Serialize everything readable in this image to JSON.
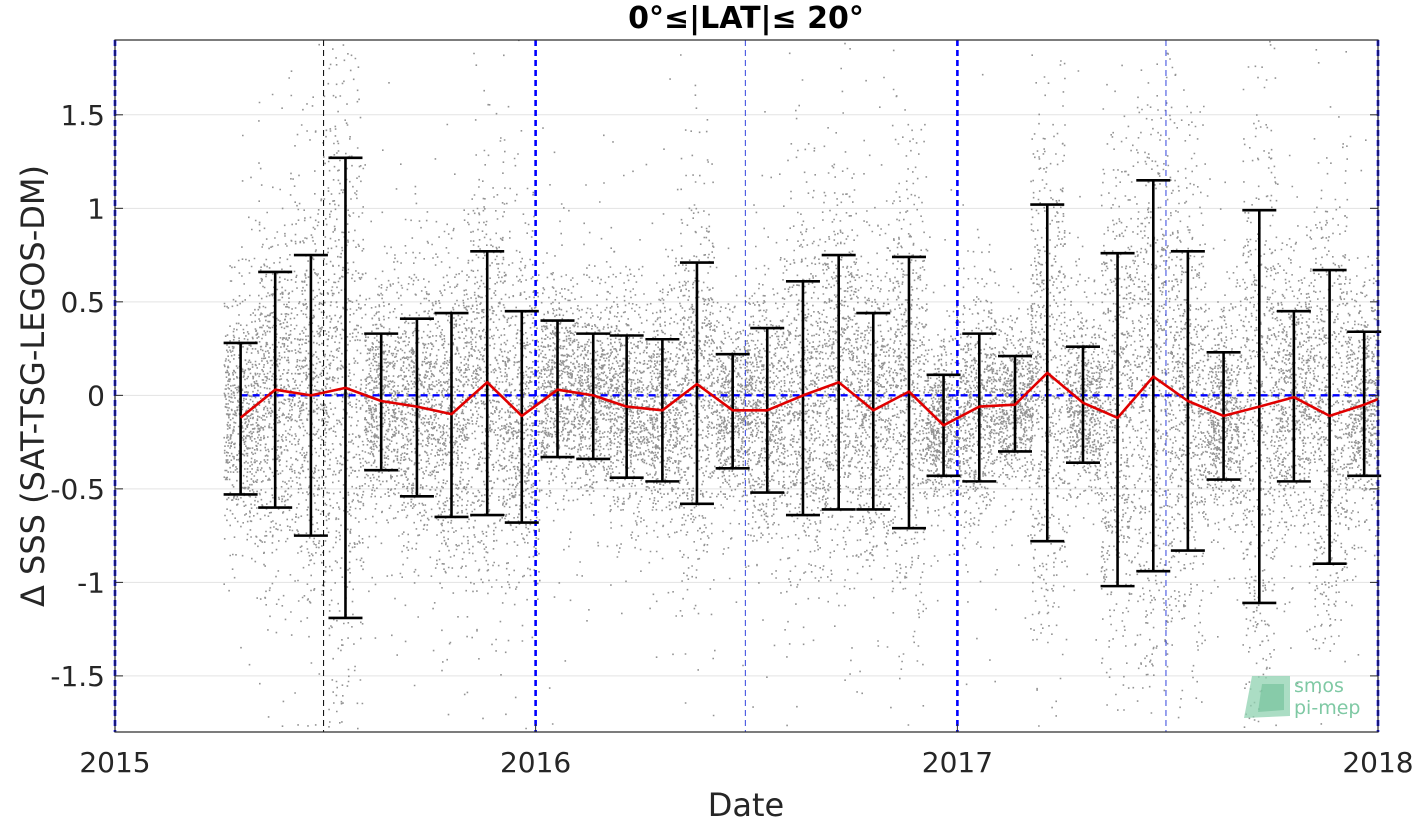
{
  "chart_data": {
    "type": "scatter",
    "title": "0°≤|LAT|≤ 20°",
    "xlabel": "Date",
    "ylabel": "Δ SSS (SAT-TSG-LEGOS-DM)",
    "xlim": [
      "2015-01-01",
      "2018-01-01"
    ],
    "ylim": [
      -1.8,
      1.9
    ],
    "x_ticks": [
      "2015",
      "2016",
      "2017",
      "2018"
    ],
    "y_ticks": [
      -1.5,
      -1,
      -0.5,
      0,
      0.5,
      1,
      1.5
    ],
    "y_tick_labels": [
      "-1.5",
      "-1",
      "-0.5",
      "0",
      "0.5",
      "1",
      "1.5"
    ],
    "grid": true,
    "zero_line": {
      "value": 0,
      "color": "#0000ff",
      "style": "dashed"
    },
    "year_markers": [
      "2015-01-01",
      "2016-01-01",
      "2017-01-01",
      "2018-01-01"
    ],
    "half_year_markers": [
      "2015-07-01",
      "2016-07-01",
      "2017-07-01"
    ],
    "scatter_color": "#808080",
    "series": [
      {
        "kind": "mean_line",
        "color": "#e00000",
        "x": [
          "2015-04-20",
          "2015-05-20",
          "2015-06-20",
          "2015-07-20",
          "2015-08-20",
          "2015-09-20",
          "2015-10-20",
          "2015-11-20",
          "2015-12-20",
          "2016-01-20",
          "2016-02-20",
          "2016-03-20",
          "2016-04-20",
          "2016-05-20",
          "2016-06-20",
          "2016-07-20",
          "2016-08-20",
          "2016-09-20",
          "2016-10-20",
          "2016-11-20",
          "2016-12-20",
          "2017-01-20",
          "2017-02-20",
          "2017-03-20",
          "2017-04-20",
          "2017-05-20",
          "2017-06-20",
          "2017-07-20",
          "2017-08-20",
          "2017-09-20",
          "2017-10-20",
          "2017-11-20",
          "2017-12-20",
          "2018-01-01"
        ],
        "y": [
          -0.12,
          0.03,
          0.0,
          0.04,
          -0.03,
          -0.06,
          -0.1,
          0.07,
          -0.11,
          0.03,
          0.0,
          -0.06,
          -0.08,
          0.06,
          -0.08,
          -0.08,
          0.0,
          0.07,
          -0.08,
          0.02,
          -0.16,
          -0.06,
          -0.05,
          0.12,
          -0.04,
          -0.12,
          0.1,
          -0.03,
          -0.11,
          -0.06,
          -0.01,
          -0.11,
          -0.05,
          -0.02
        ]
      },
      {
        "kind": "std_errorbars",
        "color": "#000000",
        "x": [
          "2015-04-20",
          "2015-05-20",
          "2015-06-20",
          "2015-07-20",
          "2015-08-20",
          "2015-09-20",
          "2015-10-20",
          "2015-11-20",
          "2015-12-20",
          "2016-01-20",
          "2016-02-20",
          "2016-03-20",
          "2016-04-20",
          "2016-05-20",
          "2016-06-20",
          "2016-07-20",
          "2016-08-20",
          "2016-09-20",
          "2016-10-20",
          "2016-11-20",
          "2016-12-20",
          "2017-01-20",
          "2017-02-20",
          "2017-03-20",
          "2017-04-20",
          "2017-05-20",
          "2017-06-20",
          "2017-07-20",
          "2017-08-20",
          "2017-09-20",
          "2017-10-20",
          "2017-11-20",
          "2017-12-20"
        ],
        "upper": [
          0.28,
          0.66,
          0.75,
          1.27,
          0.33,
          0.41,
          0.44,
          0.77,
          0.45,
          0.4,
          0.33,
          0.32,
          0.3,
          0.71,
          0.22,
          0.36,
          0.61,
          0.75,
          0.44,
          0.74,
          0.11,
          0.33,
          0.21,
          1.02,
          0.26,
          0.76,
          1.15,
          0.77,
          0.23,
          0.99,
          0.45,
          0.67,
          0.34
        ],
        "lower": [
          -0.53,
          -0.6,
          -0.75,
          -1.19,
          -0.4,
          -0.54,
          -0.65,
          -0.64,
          -0.68,
          -0.33,
          -0.34,
          -0.44,
          -0.46,
          -0.58,
          -0.39,
          -0.52,
          -0.64,
          -0.61,
          -0.61,
          -0.71,
          -0.43,
          -0.46,
          -0.3,
          -0.78,
          -0.36,
          -1.02,
          -0.94,
          -0.83,
          -0.45,
          -1.11,
          -0.46,
          -0.9,
          -0.43
        ]
      }
    ]
  },
  "logo": {
    "line1": "smos",
    "line2": "pi-mep"
  }
}
